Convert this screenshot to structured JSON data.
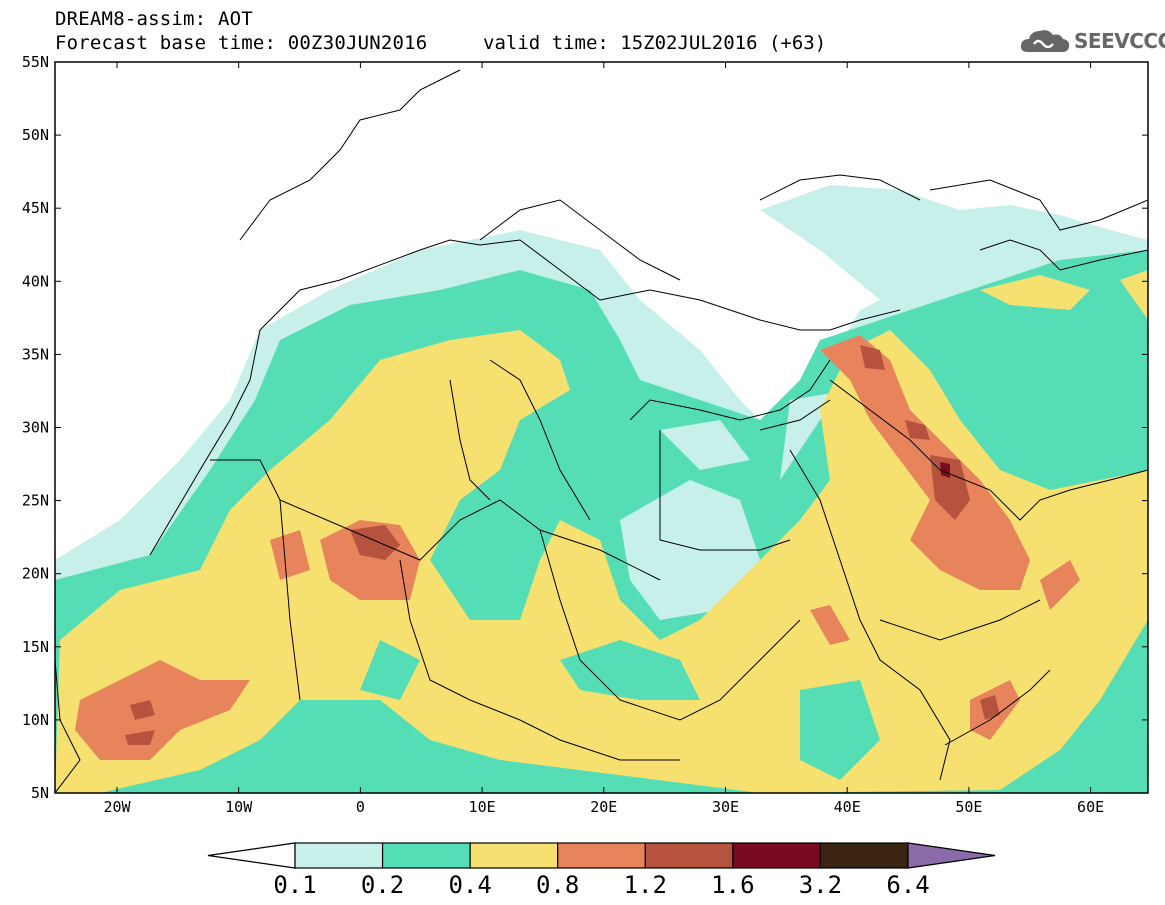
{
  "header": {
    "model_title": "DREAM8-assim: AOT",
    "base_time": "Forecast base time: 00Z30JUN2016",
    "valid_time": "valid time: 15Z02JUL2016 (+63)"
  },
  "logo": {
    "text": "SEEVCCC",
    "icon": "cloud-icon",
    "color": "#666666"
  },
  "map": {
    "lat_labels": [
      "55N",
      "50N",
      "45N",
      "40N",
      "35N",
      "30N",
      "25N",
      "20N",
      "15N",
      "10N",
      "5N"
    ],
    "lon_labels": [
      "20W",
      "10W",
      "0",
      "10E",
      "20E",
      "30E",
      "40E",
      "50E",
      "60E"
    ]
  },
  "colorbar": {
    "levels": [
      "0.1",
      "0.2",
      "0.4",
      "0.8",
      "1.2",
      "1.6",
      "3.2",
      "6.4"
    ],
    "colors": [
      "#ffffff",
      "#c8f0ea",
      "#55deb5",
      "#f5e070",
      "#e8845c",
      "#b5533e",
      "#7a0a22",
      "#3b2412",
      "#8a6aa8"
    ]
  }
}
